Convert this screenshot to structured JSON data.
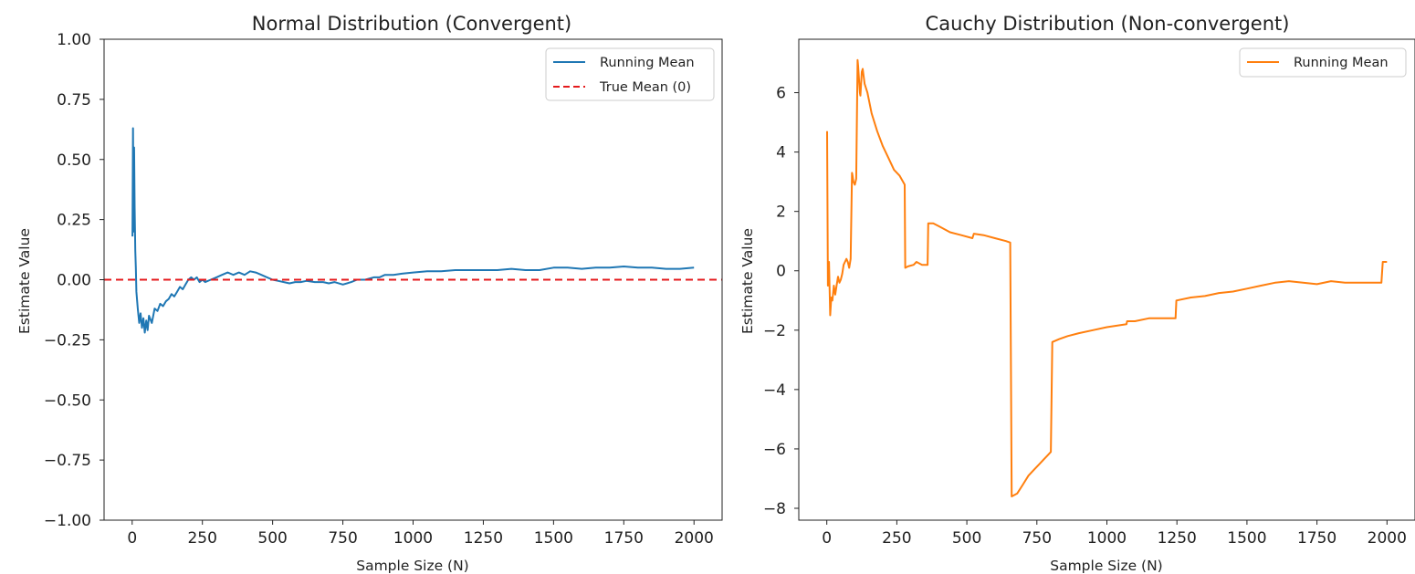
{
  "chart_data": [
    {
      "type": "line",
      "title": "Normal Distribution (Convergent)",
      "xlabel": "Sample Size (N)",
      "ylabel": "Estimate Value",
      "xlim": [
        -100,
        2100
      ],
      "ylim": [
        -1.0,
        1.0
      ],
      "xticks": [
        0,
        250,
        500,
        750,
        1000,
        1250,
        1500,
        1750,
        2000
      ],
      "xtick_labels": [
        "0",
        "250",
        "500",
        "750",
        "1000",
        "1250",
        "1500",
        "1750",
        "2000"
      ],
      "yticks": [
        -1.0,
        -0.75,
        -0.5,
        -0.25,
        0.0,
        0.25,
        0.5,
        0.75,
        1.0
      ],
      "ytick_labels": [
        "−1.00",
        "−0.75",
        "−0.50",
        "−0.25",
        "0.00",
        "0.25",
        "0.50",
        "0.75",
        "1.00"
      ],
      "grid": false,
      "legend": "top-right",
      "series": [
        {
          "name": "Running Mean",
          "color": "#1f77b4",
          "style": "solid",
          "x": [
            1,
            3,
            5,
            7,
            9,
            11,
            13,
            15,
            20,
            25,
            30,
            35,
            40,
            45,
            50,
            55,
            60,
            70,
            80,
            90,
            100,
            110,
            120,
            130,
            140,
            150,
            160,
            170,
            180,
            190,
            200,
            210,
            220,
            230,
            240,
            250,
            260,
            280,
            300,
            320,
            340,
            360,
            380,
            400,
            420,
            440,
            460,
            480,
            500,
            520,
            540,
            560,
            580,
            600,
            620,
            650,
            680,
            700,
            720,
            750,
            780,
            800,
            830,
            860,
            880,
            900,
            930,
            960,
            1000,
            1050,
            1100,
            1150,
            1200,
            1250,
            1300,
            1350,
            1400,
            1450,
            1500,
            1550,
            1600,
            1650,
            1700,
            1750,
            1800,
            1850,
            1900,
            1950,
            2000
          ],
          "y": [
            0.18,
            0.63,
            0.2,
            0.55,
            0.3,
            0.12,
            0.05,
            -0.05,
            -0.12,
            -0.18,
            -0.14,
            -0.2,
            -0.16,
            -0.22,
            -0.17,
            -0.21,
            -0.15,
            -0.18,
            -0.12,
            -0.13,
            -0.1,
            -0.11,
            -0.09,
            -0.08,
            -0.06,
            -0.07,
            -0.05,
            -0.03,
            -0.04,
            -0.02,
            0.0,
            0.01,
            0.0,
            0.01,
            -0.01,
            0.0,
            -0.01,
            0.0,
            0.01,
            0.02,
            0.03,
            0.02,
            0.03,
            0.02,
            0.035,
            0.03,
            0.02,
            0.01,
            0.0,
            -0.005,
            -0.01,
            -0.015,
            -0.01,
            -0.01,
            -0.005,
            -0.01,
            -0.01,
            -0.015,
            -0.01,
            -0.02,
            -0.01,
            0.0,
            0.0,
            0.01,
            0.01,
            0.02,
            0.02,
            0.025,
            0.03,
            0.035,
            0.035,
            0.04,
            0.04,
            0.04,
            0.04,
            0.045,
            0.04,
            0.04,
            0.05,
            0.05,
            0.045,
            0.05,
            0.05,
            0.055,
            0.05,
            0.05,
            0.045,
            0.045,
            0.05
          ]
        },
        {
          "name": "True Mean (0)",
          "color": "#e41a1c",
          "style": "dashed",
          "y_constant": 0
        }
      ]
    },
    {
      "type": "line",
      "title": "Cauchy Distribution (Non-convergent)",
      "xlabel": "Sample Size (N)",
      "ylabel": "Estimate Value",
      "xlim": [
        -100,
        2100
      ],
      "ylim": [
        -8.4,
        7.8
      ],
      "xticks": [
        0,
        250,
        500,
        750,
        1000,
        1250,
        1500,
        1750,
        2000
      ],
      "xtick_labels": [
        "0",
        "250",
        "500",
        "750",
        "1000",
        "1250",
        "1500",
        "1750",
        "2000"
      ],
      "yticks": [
        -8,
        -6,
        -4,
        -2,
        0,
        2,
        4,
        6
      ],
      "ytick_labels": [
        "−8",
        "−6",
        "−4",
        "−2",
        "0",
        "2",
        "4",
        "6"
      ],
      "grid": false,
      "legend": "top-right",
      "series": [
        {
          "name": "Running Mean",
          "color": "#ff7f0e",
          "style": "solid",
          "x": [
            1,
            4,
            8,
            12,
            16,
            20,
            25,
            30,
            35,
            40,
            45,
            50,
            55,
            60,
            65,
            70,
            75,
            80,
            85,
            90,
            92,
            95,
            100,
            105,
            110,
            112,
            118,
            120,
            125,
            128,
            135,
            145,
            160,
            180,
            200,
            220,
            240,
            260,
            278,
            280,
            290,
            310,
            320,
            340,
            360,
            362,
            380,
            400,
            440,
            480,
            520,
            525,
            560,
            600,
            640,
            655,
            660,
            680,
            700,
            720,
            740,
            760,
            780,
            790,
            800,
            805,
            830,
            860,
            900,
            950,
            1000,
            1070,
            1072,
            1100,
            1150,
            1200,
            1245,
            1248,
            1300,
            1350,
            1400,
            1450,
            1500,
            1550,
            1600,
            1650,
            1700,
            1750,
            1800,
            1850,
            1900,
            1950,
            1980,
            1985,
            2000
          ],
          "y": [
            4.7,
            -0.5,
            0.3,
            -1.5,
            -0.9,
            -1.0,
            -0.5,
            -0.8,
            -0.5,
            -0.2,
            -0.4,
            -0.3,
            -0.1,
            0.2,
            0.3,
            0.4,
            0.3,
            0.1,
            0.4,
            3.3,
            3.2,
            3.0,
            2.9,
            3.1,
            7.1,
            6.9,
            6.0,
            5.9,
            6.7,
            6.8,
            6.3,
            6.0,
            5.3,
            4.7,
            4.2,
            3.8,
            3.4,
            3.2,
            2.9,
            0.1,
            0.15,
            0.2,
            0.3,
            0.2,
            0.2,
            1.6,
            1.6,
            1.5,
            1.3,
            1.2,
            1.1,
            1.25,
            1.2,
            1.1,
            1.0,
            0.95,
            -7.6,
            -7.5,
            -7.2,
            -6.9,
            -6.7,
            -6.5,
            -6.3,
            -6.2,
            -6.1,
            -2.4,
            -2.3,
            -2.2,
            -2.1,
            -2.0,
            -1.9,
            -1.8,
            -1.7,
            -1.7,
            -1.6,
            -1.6,
            -1.6,
            -1.0,
            -0.9,
            -0.85,
            -0.75,
            -0.7,
            -0.6,
            -0.5,
            -0.4,
            -0.35,
            -0.4,
            -0.45,
            -0.35,
            -0.4,
            -0.4,
            -0.4,
            -0.4,
            0.3,
            0.3
          ]
        }
      ]
    }
  ]
}
